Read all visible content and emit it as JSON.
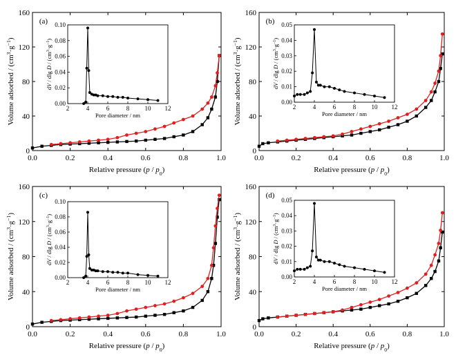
{
  "chart_data": [
    {
      "type": "line",
      "panel_label": "(a)",
      "xlabel": "Relative pressure (p / p0)",
      "ylabel": "Volume adsorbed / (cm³·g⁻¹)",
      "xlim": [
        0,
        1.0
      ],
      "ylim": [
        0,
        160
      ],
      "xticks": [
        "0.0",
        "0.2",
        "0.4",
        "0.6",
        "0.8",
        "1.0"
      ],
      "yticks": [
        "0",
        "40",
        "80",
        "120",
        "160"
      ],
      "series": [
        {
          "color": "#000000",
          "marker": "square",
          "x": [
            0.0,
            0.05,
            0.1,
            0.15,
            0.2,
            0.25,
            0.3,
            0.35,
            0.4,
            0.45,
            0.5,
            0.55,
            0.6,
            0.65,
            0.7,
            0.75,
            0.8,
            0.85,
            0.9,
            0.93,
            0.95,
            0.97,
            0.98,
            0.99
          ],
          "y": [
            3,
            5,
            6,
            7,
            7.5,
            8,
            8.5,
            9,
            9.5,
            10,
            10.5,
            11,
            12,
            13,
            14,
            16,
            18,
            22,
            30,
            38,
            48,
            62,
            80,
            110
          ]
        },
        {
          "color": "#e02020",
          "marker": "circle",
          "x": [
            0.1,
            0.15,
            0.2,
            0.25,
            0.3,
            0.35,
            0.4,
            0.45,
            0.5,
            0.55,
            0.6,
            0.65,
            0.7,
            0.75,
            0.8,
            0.85,
            0.9,
            0.93,
            0.95,
            0.97,
            0.98,
            0.99
          ],
          "y": [
            7,
            8,
            9,
            10,
            11,
            12,
            13,
            15,
            18,
            20,
            22,
            25,
            28,
            32,
            36,
            40,
            48,
            55,
            62,
            75,
            90,
            110
          ]
        }
      ],
      "inset": {
        "xlabel": "Pore diameter / nm",
        "ylabel": "dV / dlg D / (cm³·g⁻¹)",
        "xlim": [
          2,
          12
        ],
        "ylim": [
          0,
          0.1
        ],
        "xticks": [
          "2",
          "4",
          "6",
          "8",
          "10",
          "12"
        ],
        "yticks": [
          "0.00",
          "0.02",
          "0.04",
          "0.06",
          "0.08",
          "0.10"
        ],
        "x": [
          3.6,
          3.8,
          3.9,
          4.0,
          4.1,
          4.2,
          4.4,
          4.6,
          4.8,
          5.0,
          5.5,
          6.0,
          6.5,
          7.0,
          7.5,
          8.0,
          9.0,
          10.0,
          11.0
        ],
        "y": [
          0.0,
          0.002,
          0.045,
          0.096,
          0.042,
          0.014,
          0.012,
          0.011,
          0.011,
          0.01,
          0.01,
          0.009,
          0.009,
          0.008,
          0.008,
          0.007,
          0.006,
          0.005,
          0.004
        ]
      }
    },
    {
      "type": "line",
      "panel_label": "(b)",
      "xlabel": "Relative pressure (p / p0)",
      "ylabel": "Volume adsorbed / (cm³·g⁻¹)",
      "xlim": [
        0,
        1.0
      ],
      "ylim": [
        0,
        160
      ],
      "xticks": [
        "0.0",
        "0.2",
        "0.4",
        "0.6",
        "0.8",
        "1.0"
      ],
      "yticks": [
        "0",
        "40",
        "80",
        "120",
        "160"
      ],
      "series": [
        {
          "color": "#000000",
          "marker": "square",
          "x": [
            0.0,
            0.02,
            0.05,
            0.1,
            0.15,
            0.2,
            0.25,
            0.3,
            0.35,
            0.4,
            0.45,
            0.5,
            0.55,
            0.6,
            0.65,
            0.7,
            0.75,
            0.8,
            0.85,
            0.9,
            0.93,
            0.95,
            0.97,
            0.98,
            0.99
          ],
          "y": [
            5,
            8,
            9,
            10,
            11,
            12,
            13,
            14,
            15,
            16,
            17,
            18,
            20,
            22,
            24,
            27,
            30,
            34,
            40,
            50,
            58,
            68,
            80,
            95,
            112
          ]
        },
        {
          "color": "#e02020",
          "marker": "circle",
          "x": [
            0.1,
            0.15,
            0.2,
            0.25,
            0.3,
            0.35,
            0.4,
            0.45,
            0.5,
            0.55,
            0.6,
            0.65,
            0.7,
            0.75,
            0.8,
            0.85,
            0.9,
            0.93,
            0.95,
            0.97,
            0.98,
            0.99
          ],
          "y": [
            11,
            12,
            13,
            14,
            15,
            16,
            17,
            19,
            22,
            25,
            28,
            31,
            34,
            38,
            42,
            48,
            58,
            68,
            78,
            92,
            110,
            135
          ]
        }
      ],
      "inset": {
        "xlabel": "Pore diameter / nm",
        "ylabel": "dV / dlg D / (cm³·g⁻¹)",
        "xlim": [
          2,
          12
        ],
        "ylim": [
          0,
          0.05
        ],
        "xticks": [
          "2",
          "4",
          "6",
          "8",
          "10",
          "12"
        ],
        "yticks": [
          "0.00",
          "0.01",
          "0.02",
          "0.03",
          "0.04",
          "0.05"
        ],
        "x": [
          2.0,
          2.3,
          2.6,
          3.0,
          3.3,
          3.6,
          3.8,
          4.0,
          4.2,
          4.4,
          4.6,
          5.0,
          5.5,
          6.0,
          6.5,
          7.0,
          8.0,
          9.0,
          10.0,
          11.0
        ],
        "y": [
          0.004,
          0.005,
          0.005,
          0.005,
          0.006,
          0.007,
          0.019,
          0.047,
          0.013,
          0.011,
          0.011,
          0.01,
          0.01,
          0.009,
          0.008,
          0.007,
          0.006,
          0.005,
          0.004,
          0.003
        ]
      }
    },
    {
      "type": "line",
      "panel_label": "(c)",
      "xlabel": "Relative pressure (p / p0)",
      "ylabel": "Volume adsorbed / (cm³·g⁻¹)",
      "xlim": [
        0,
        1.0
      ],
      "ylim": [
        0,
        160
      ],
      "xticks": [
        "0.0",
        "0.2",
        "0.4",
        "0.6",
        "0.8",
        "1.0"
      ],
      "yticks": [
        "0",
        "40",
        "80",
        "120",
        "160"
      ],
      "series": [
        {
          "color": "#000000",
          "marker": "square",
          "x": [
            0.0,
            0.05,
            0.1,
            0.15,
            0.2,
            0.25,
            0.3,
            0.35,
            0.4,
            0.45,
            0.5,
            0.55,
            0.6,
            0.65,
            0.7,
            0.75,
            0.8,
            0.85,
            0.9,
            0.93,
            0.95,
            0.96,
            0.97,
            0.98,
            0.99
          ],
          "y": [
            3,
            5,
            6,
            7,
            7.5,
            8,
            8.5,
            9,
            9.5,
            10,
            10.5,
            11,
            12,
            13,
            14,
            16,
            18,
            22,
            30,
            40,
            55,
            70,
            95,
            125,
            145
          ]
        },
        {
          "color": "#e02020",
          "marker": "circle",
          "x": [
            0.1,
            0.15,
            0.2,
            0.25,
            0.3,
            0.35,
            0.4,
            0.45,
            0.5,
            0.55,
            0.6,
            0.65,
            0.7,
            0.75,
            0.8,
            0.85,
            0.9,
            0.93,
            0.95,
            0.96,
            0.97,
            0.98,
            0.99
          ],
          "y": [
            7,
            8,
            9,
            10,
            11,
            12,
            13,
            15,
            18,
            20,
            22,
            24,
            26,
            29,
            33,
            38,
            46,
            55,
            70,
            90,
            115,
            135,
            150
          ]
        }
      ],
      "inset": {
        "xlabel": "Pore diameter / nm",
        "ylabel": "dV / dlg D / (cm³·g⁻¹)",
        "xlim": [
          2,
          12
        ],
        "ylim": [
          0,
          0.1
        ],
        "xticks": [
          "2",
          "4",
          "6",
          "8",
          "10",
          "12"
        ],
        "yticks": [
          "0.00",
          "0.02",
          "0.04",
          "0.06",
          "0.08",
          "0.10"
        ],
        "x": [
          3.6,
          3.8,
          3.9,
          4.0,
          4.1,
          4.2,
          4.4,
          4.6,
          4.8,
          5.0,
          5.5,
          6.0,
          6.5,
          7.0,
          7.5,
          8.0,
          9.0,
          10.0,
          11.0
        ],
        "y": [
          0.0,
          0.002,
          0.028,
          0.086,
          0.03,
          0.012,
          0.01,
          0.01,
          0.009,
          0.009,
          0.008,
          0.008,
          0.007,
          0.007,
          0.006,
          0.006,
          0.004,
          0.003,
          0.002
        ]
      }
    },
    {
      "type": "line",
      "panel_label": "(d)",
      "xlabel": "Relative pressure (p / p0)",
      "ylabel": "Volume adsorbed / (cm³·g⁻¹)",
      "xlim": [
        0,
        1.0
      ],
      "ylim": [
        0,
        160
      ],
      "xticks": [
        "0.0",
        "0.2",
        "0.4",
        "0.6",
        "0.8",
        "1.0"
      ],
      "yticks": [
        "0",
        "40",
        "80",
        "120",
        "160"
      ],
      "series": [
        {
          "color": "#000000",
          "marker": "square",
          "x": [
            0.0,
            0.02,
            0.05,
            0.1,
            0.15,
            0.2,
            0.25,
            0.3,
            0.35,
            0.4,
            0.45,
            0.5,
            0.55,
            0.6,
            0.65,
            0.7,
            0.75,
            0.8,
            0.85,
            0.9,
            0.93,
            0.95,
            0.97,
            0.98,
            0.99
          ],
          "y": [
            7,
            9,
            10,
            11,
            12,
            13,
            14,
            15,
            16,
            17,
            18,
            19,
            20,
            22,
            24,
            26,
            29,
            33,
            38,
            47,
            55,
            63,
            75,
            90,
            108
          ]
        },
        {
          "color": "#e02020",
          "marker": "circle",
          "x": [
            0.1,
            0.15,
            0.2,
            0.25,
            0.3,
            0.35,
            0.4,
            0.45,
            0.5,
            0.55,
            0.6,
            0.65,
            0.7,
            0.75,
            0.8,
            0.85,
            0.9,
            0.93,
            0.95,
            0.97,
            0.98,
            0.99
          ],
          "y": [
            11,
            12,
            13,
            14,
            15,
            16,
            17,
            19,
            22,
            25,
            28,
            31,
            35,
            39,
            44,
            50,
            60,
            70,
            82,
            95,
            110,
            130
          ]
        }
      ],
      "inset": {
        "xlabel": "Pore diameter / nm",
        "ylabel": "dV / dlg D / (cm³·g⁻¹)",
        "xlim": [
          2,
          12
        ],
        "ylim": [
          0,
          0.05
        ],
        "xticks": [
          "2",
          "4",
          "6",
          "8",
          "10",
          "12"
        ],
        "yticks": [
          "0.00",
          "0.01",
          "0.02",
          "0.03",
          "0.04",
          "0.05"
        ],
        "x": [
          2.0,
          2.3,
          2.6,
          3.0,
          3.3,
          3.6,
          3.8,
          4.0,
          4.2,
          4.4,
          4.6,
          5.0,
          5.5,
          6.0,
          6.5,
          7.0,
          8.0,
          9.0,
          10.0,
          11.0
        ],
        "y": [
          0.004,
          0.005,
          0.005,
          0.005,
          0.006,
          0.007,
          0.017,
          0.048,
          0.013,
          0.011,
          0.011,
          0.01,
          0.01,
          0.009,
          0.008,
          0.007,
          0.006,
          0.005,
          0.004,
          0.003
        ]
      }
    }
  ]
}
